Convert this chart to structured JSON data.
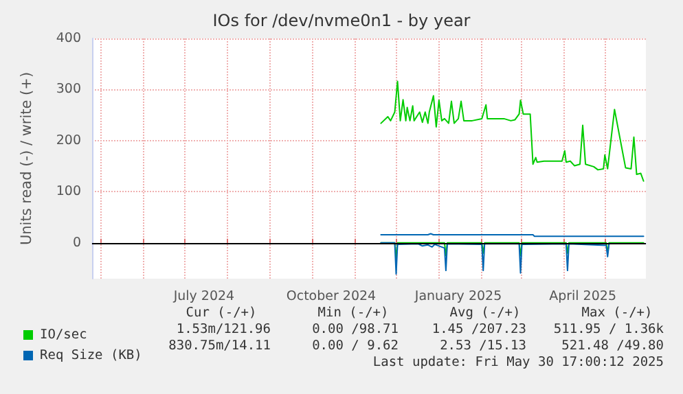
{
  "chart_data": {
    "type": "line",
    "title": "IOs for /dev/nvme0n1 - by year",
    "ylabel": "Units read (-) / write (+)",
    "xlim": [
      "2024-04-25",
      "2025-05-30T17:00"
    ],
    "xticks": [
      {
        "value": "2024-05-01",
        "label": null
      },
      {
        "value": "2024-06-01",
        "label": null
      },
      {
        "value": "2024-07-01",
        "label": null
      },
      {
        "value": "2024-07-15",
        "label": "July 2024"
      },
      {
        "value": "2024-08-01",
        "label": null
      },
      {
        "value": "2024-09-01",
        "label": null
      },
      {
        "value": "2024-10-01",
        "label": null
      },
      {
        "value": "2024-10-15",
        "label": "October 2024"
      },
      {
        "value": "2024-11-01",
        "label": null
      },
      {
        "value": "2024-12-01",
        "label": null
      },
      {
        "value": "2025-01-01",
        "label": null
      },
      {
        "value": "2025-01-15",
        "label": "January 2025"
      },
      {
        "value": "2025-02-01",
        "label": null
      },
      {
        "value": "2025-03-01",
        "label": null
      },
      {
        "value": "2025-04-01",
        "label": null
      },
      {
        "value": "2025-04-15",
        "label": "April 2025"
      },
      {
        "value": "2025-05-01",
        "label": null
      }
    ],
    "ylim": [
      -70,
      400
    ],
    "yticks": [
      0,
      100,
      200,
      300,
      400
    ],
    "grid": true,
    "legend": "bottom left",
    "marker": "none",
    "ref_lines": [
      {
        "axis": "y",
        "value": 0,
        "color": "#000000"
      }
    ],
    "series": [
      {
        "name": "IO/sec",
        "color": "#00cc00",
        "x": [
          "2024-11-20",
          "2024-11-25",
          "2024-11-27",
          "2024-11-30",
          "2024-12-02",
          "2024-12-04",
          "2024-12-06",
          "2024-12-08",
          "2024-12-09",
          "2024-12-11",
          "2024-12-13",
          "2024-12-14",
          "2024-12-18",
          "2024-12-20",
          "2024-12-22",
          "2024-12-24",
          "2024-12-25",
          "2024-12-28",
          "2024-12-30",
          "2025-01-01",
          "2025-01-03",
          "2025-01-05",
          "2025-01-08",
          "2025-01-10",
          "2025-01-12",
          "2025-01-15",
          "2025-01-17",
          "2025-01-19",
          "2025-01-25",
          "2025-02-01",
          "2025-02-04",
          "2025-02-05",
          "2025-02-17",
          "2025-02-22",
          "2025-02-25",
          "2025-02-28",
          "2025-03-01",
          "2025-03-03",
          "2025-03-08",
          "2025-03-10",
          "2025-03-12",
          "2025-03-13",
          "2025-03-18",
          "2025-03-31",
          "2025-04-02",
          "2025-04-03",
          "2025-04-06",
          "2025-04-09",
          "2025-04-13",
          "2025-04-15",
          "2025-04-17",
          "2025-04-23",
          "2025-04-26",
          "2025-04-30",
          "2025-05-01",
          "2025-05-03",
          "2025-05-08",
          "2025-05-16",
          "2025-05-20",
          "2025-05-22",
          "2025-05-24",
          "2025-05-27",
          "2025-05-29"
        ],
        "values": [
          234,
          247,
          239,
          256,
          316,
          239,
          280,
          239,
          265,
          239,
          268,
          239,
          256,
          236,
          256,
          234,
          256,
          288,
          227,
          279,
          239,
          243,
          234,
          277,
          234,
          243,
          277,
          239,
          239,
          243,
          270,
          243,
          243,
          239,
          241,
          252,
          279,
          252,
          252,
          154,
          167,
          158,
          160,
          160,
          180,
          158,
          160,
          151,
          154,
          230,
          154,
          149,
          143,
          145,
          172,
          145,
          261,
          147,
          145,
          207,
          134,
          136,
          121
        ]
      },
      {
        "color": "#00cc00",
        "x": [
          "2024-11-20",
          "2024-11-30",
          "2024-12-01",
          "2024-12-02",
          "2025-01-05",
          "2025-01-06",
          "2025-01-07",
          "2025-02-01",
          "2025-02-02",
          "2025-02-03",
          "2025-02-28",
          "2025-03-01",
          "2025-03-02",
          "2025-04-03",
          "2025-04-04",
          "2025-04-05",
          "2025-05-02",
          "2025-05-03",
          "2025-05-04",
          "2025-05-29"
        ],
        "values": [
          0,
          0,
          -30,
          0,
          0,
          -25,
          0,
          0,
          -20,
          0,
          0,
          -25,
          0,
          0,
          -20,
          0,
          0,
          -20,
          0,
          0
        ]
      },
      {
        "name": "Req Size (KB)",
        "color": "#0066b3",
        "x": [
          "2024-11-20",
          "2024-12-24",
          "2024-12-26",
          "2024-12-28",
          "2025-03-10",
          "2025-03-11",
          "2025-05-29"
        ],
        "values": [
          16,
          16,
          18,
          16,
          16,
          13,
          13
        ]
      },
      {
        "color": "#0066b3",
        "x": [
          "2024-11-20",
          "2024-11-30",
          "2024-12-01",
          "2024-12-02",
          "2024-12-17",
          "2024-12-20",
          "2024-12-24",
          "2024-12-27",
          "2024-12-29",
          "2025-01-05",
          "2025-01-06",
          "2025-01-07",
          "2025-02-01",
          "2025-02-02",
          "2025-02-03",
          "2025-02-28",
          "2025-03-01",
          "2025-03-02",
          "2025-04-03",
          "2025-04-04",
          "2025-04-05",
          "2025-05-02",
          "2025-05-03",
          "2025-05-04"
        ],
        "values": [
          0,
          0,
          -61,
          -3,
          -2,
          -6,
          -4,
          -8,
          -3,
          -10,
          -54,
          -2,
          -3,
          -54,
          -2,
          -2,
          -59,
          -3,
          -2,
          -54,
          -2,
          -5,
          -27,
          -3
        ]
      }
    ],
    "annotations": [
      "Cur (-/+)",
      "Min (-/+)",
      "Avg (-/+)",
      "Max (-/+)",
      "1.53m/121.96",
      "0.00 /98.71",
      "1.45 /207.23",
      "511.95 / 1.36k",
      "830.75m/14.11",
      "0.00 / 9.62",
      "2.53 /15.13",
      "521.48 /49.80",
      "Last update: Fri May 30 17:00:12 2025"
    ]
  }
}
